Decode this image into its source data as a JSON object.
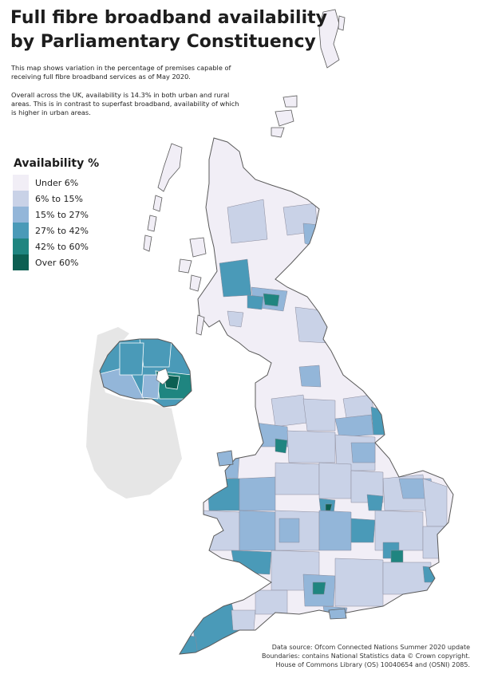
{
  "title": {
    "line1": "Full fibre broadband availability",
    "line2": "by Parliamentary Constituency"
  },
  "intro": {
    "paragraph1": "This map shows variation in the percentage of premises capable of receiving full fibre broadband services as of May 2020.",
    "paragraph2": "Overall across the UK, availability is 14.3% in both urban and rural areas. This is in contrast to superfast broadband, availability of which is higher in urban areas."
  },
  "legend": {
    "title": "Availability %",
    "items": [
      {
        "label": "Under 6%",
        "color": "#f1eef6"
      },
      {
        "label": "6% to 15%",
        "color": "#c9d2e7"
      },
      {
        "label": "15% to 27%",
        "color": "#93b6d9"
      },
      {
        "label": "27% to 42%",
        "color": "#4a9ab8"
      },
      {
        "label": "42% to 60%",
        "color": "#1f8580"
      },
      {
        "label": "Over 60%",
        "color": "#0c5f52"
      }
    ]
  },
  "source": {
    "line1": "Data source: Ofcom Connected Nations Summer 2020 update",
    "line2": "Boundaries: contains National Statistics data © Crown copyright.",
    "line3": "House of Commons Library (OS) 10040654 and (OSNI) 2085."
  },
  "colors": {
    "outline": "#5a5a5a",
    "ireland_land": "#e6e6e6"
  }
}
